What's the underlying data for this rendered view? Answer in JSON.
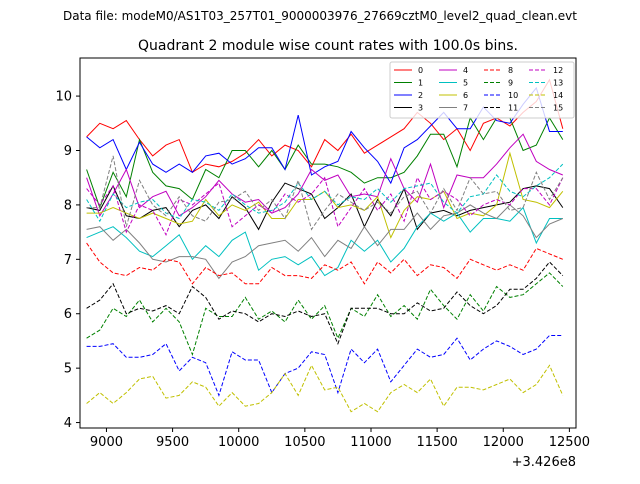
{
  "chart_data": {
    "type": "line",
    "suptitle": "Data file: modeM0/AS1T03_257T01_9000003976_27669cztM0_level2_quad_clean.evt",
    "title": "Quadrant 2 module wise count rates with 100.0s bins.",
    "xlabel": "",
    "ylabel": "",
    "offset_text": "+3.426e8",
    "xlim": [
      8800,
      12550
    ],
    "ylim": [
      3.9,
      10.7
    ],
    "xticks": [
      9000,
      9500,
      10000,
      10500,
      11000,
      11500,
      12000,
      12500
    ],
    "yticks": [
      4,
      5,
      6,
      7,
      8,
      9,
      10
    ],
    "grid": false,
    "legend": {
      "position": "top-right",
      "columns": 4
    },
    "x": [
      8850,
      8950,
      9050,
      9150,
      9250,
      9350,
      9450,
      9550,
      9650,
      9750,
      9850,
      9950,
      10050,
      10150,
      10250,
      10350,
      10450,
      10550,
      10650,
      10750,
      10850,
      10950,
      11050,
      11150,
      11250,
      11350,
      11450,
      11550,
      11650,
      11750,
      11850,
      11950,
      12050,
      12150,
      12250,
      12350,
      12450
    ],
    "series": [
      {
        "name": "0",
        "color": "#ff0000",
        "dash": "solid",
        "values": [
          9.25,
          9.5,
          9.4,
          9.55,
          9.2,
          8.9,
          9.1,
          9.2,
          8.6,
          8.75,
          8.7,
          8.8,
          8.95,
          9.2,
          8.9,
          9.1,
          9.0,
          8.7,
          9.2,
          9.0,
          9.3,
          8.95,
          9.1,
          9.25,
          9.4,
          9.7,
          9.5,
          9.2,
          9.4,
          9.0,
          9.5,
          9.6,
          9.45,
          9.7,
          9.9,
          10.3,
          9.4
        ]
      },
      {
        "name": "1",
        "color": "#008000",
        "dash": "solid",
        "values": [
          8.65,
          7.95,
          8.6,
          8.15,
          9.2,
          8.6,
          8.35,
          8.3,
          8.1,
          8.65,
          8.5,
          9.0,
          9.0,
          8.7,
          9.0,
          8.65,
          9.1,
          8.75,
          8.75,
          8.7,
          8.6,
          8.4,
          8.5,
          8.5,
          8.6,
          8.9,
          9.3,
          9.3,
          8.7,
          9.6,
          9.2,
          9.6,
          9.6,
          9.0,
          9.1,
          9.6,
          9.2
        ]
      },
      {
        "name": "2",
        "color": "#0000ff",
        "dash": "solid",
        "values": [
          9.25,
          9.05,
          9.2,
          8.65,
          9.15,
          8.75,
          8.6,
          8.75,
          8.6,
          8.9,
          8.95,
          8.75,
          8.85,
          9.05,
          9.05,
          8.65,
          9.65,
          8.55,
          8.7,
          8.8,
          9.35,
          9.05,
          8.8,
          8.4,
          9.05,
          9.2,
          9.45,
          9.7,
          9.4,
          9.4,
          9.8,
          9.55,
          9.5,
          9.85,
          10.15,
          9.35,
          9.35
        ]
      },
      {
        "name": "3",
        "color": "#000000",
        "dash": "solid",
        "values": [
          7.95,
          7.9,
          8.35,
          7.8,
          7.75,
          7.9,
          7.95,
          7.6,
          7.9,
          8.0,
          7.75,
          8.15,
          7.95,
          7.55,
          8.05,
          8.4,
          8.3,
          8.2,
          7.75,
          7.95,
          8.2,
          7.6,
          8.1,
          7.8,
          8.3,
          7.55,
          7.85,
          7.9,
          7.8,
          7.9,
          7.95,
          8.0,
          8.05,
          8.3,
          8.35,
          8.3,
          7.95
        ]
      },
      {
        "name": "4",
        "color": "#c000c0",
        "dash": "solid",
        "values": [
          8.5,
          7.8,
          8.2,
          8.65,
          7.95,
          8.15,
          8.25,
          7.8,
          7.95,
          8.15,
          8.45,
          8.2,
          8.05,
          8.1,
          7.85,
          7.95,
          8.2,
          8.65,
          8.45,
          8.55,
          8.15,
          8.2,
          8.15,
          8.85,
          8.3,
          8.05,
          8.75,
          7.95,
          8.55,
          8.5,
          8.5,
          8.75,
          9.05,
          9.3,
          8.8,
          8.65,
          8.55
        ]
      },
      {
        "name": "5",
        "color": "#00c0c0",
        "dash": "solid",
        "values": [
          7.4,
          7.5,
          7.6,
          7.4,
          7.15,
          7.05,
          7.25,
          7.45,
          7.0,
          7.25,
          7.05,
          7.35,
          7.5,
          6.8,
          7.0,
          7.05,
          6.9,
          7.05,
          6.7,
          6.85,
          7.35,
          7.15,
          7.35,
          6.95,
          7.2,
          7.6,
          7.85,
          7.7,
          7.85,
          7.5,
          7.75,
          7.75,
          7.7,
          7.95,
          7.3,
          7.75,
          7.75
        ]
      },
      {
        "name": "6",
        "color": "#c0c000",
        "dash": "solid",
        "values": [
          7.85,
          7.85,
          7.95,
          7.85,
          7.75,
          7.85,
          7.75,
          7.65,
          7.7,
          8.1,
          7.8,
          8.0,
          7.9,
          8.05,
          7.75,
          7.75,
          8.1,
          8.1,
          8.25,
          7.95,
          8.0,
          7.9,
          8.15,
          7.4,
          7.9,
          8.15,
          8.1,
          8.25,
          7.75,
          7.85,
          7.8,
          8.0,
          8.95,
          8.1,
          8.05,
          7.95,
          8.25
        ]
      },
      {
        "name": "7",
        "color": "#808080",
        "dash": "solid",
        "values": [
          7.55,
          7.6,
          7.35,
          7.55,
          7.3,
          7.0,
          6.95,
          7.05,
          7.05,
          7.0,
          6.65,
          6.95,
          7.05,
          7.25,
          7.3,
          7.35,
          7.15,
          7.4,
          7.05,
          7.35,
          7.2,
          7.6,
          7.25,
          7.55,
          7.55,
          7.85,
          7.55,
          7.8,
          7.85,
          8.0,
          7.85,
          7.75,
          8.0,
          7.8,
          7.4,
          7.65,
          7.75
        ]
      },
      {
        "name": "8",
        "color": "#ff0000",
        "dash": "dashed",
        "values": [
          7.3,
          6.95,
          6.75,
          6.7,
          6.85,
          6.8,
          7.0,
          6.95,
          6.55,
          6.85,
          6.7,
          6.75,
          6.55,
          6.55,
          6.85,
          6.7,
          6.7,
          6.65,
          6.9,
          6.8,
          6.95,
          6.55,
          6.95,
          6.75,
          7.0,
          6.7,
          6.9,
          6.85,
          6.65,
          7.0,
          6.9,
          6.8,
          6.9,
          6.8,
          7.2,
          7.1,
          7.0
        ]
      },
      {
        "name": "9",
        "color": "#008000",
        "dash": "dashed",
        "values": [
          5.55,
          5.7,
          6.1,
          5.95,
          6.25,
          5.85,
          6.1,
          5.85,
          5.25,
          6.1,
          5.95,
          5.95,
          6.3,
          5.9,
          6.05,
          5.85,
          6.25,
          5.9,
          6.15,
          5.55,
          6.1,
          5.95,
          6.35,
          5.95,
          6.15,
          5.9,
          6.45,
          6.15,
          5.9,
          6.35,
          6.05,
          6.5,
          6.3,
          6.35,
          6.55,
          6.75,
          6.5
        ]
      },
      {
        "name": "10",
        "color": "#0000ff",
        "dash": "dashed",
        "values": [
          5.4,
          5.4,
          5.45,
          5.2,
          5.2,
          5.25,
          5.45,
          4.95,
          5.2,
          5.1,
          4.5,
          5.3,
          5.15,
          5.15,
          4.55,
          4.9,
          5.0,
          5.3,
          5.25,
          4.55,
          5.35,
          5.1,
          5.35,
          4.75,
          5.05,
          5.35,
          5.2,
          5.25,
          5.55,
          5.15,
          5.35,
          5.5,
          5.4,
          5.25,
          5.35,
          5.6,
          5.6
        ]
      },
      {
        "name": "11",
        "color": "#000000",
        "dash": "dashed",
        "values": [
          6.1,
          6.25,
          6.55,
          6.0,
          6.1,
          6.05,
          6.15,
          6.0,
          6.5,
          6.3,
          5.9,
          6.05,
          6.0,
          5.85,
          6.0,
          5.95,
          6.05,
          5.95,
          6.0,
          5.45,
          6.1,
          6.1,
          6.1,
          6.0,
          6.0,
          6.2,
          6.05,
          6.1,
          6.4,
          6.15,
          6.0,
          6.15,
          6.45,
          6.45,
          6.65,
          6.95,
          6.7
        ]
      },
      {
        "name": "12",
        "color": "#c000c0",
        "dash": "dashed",
        "values": [
          8.3,
          8.0,
          8.35,
          7.5,
          8.0,
          7.9,
          7.45,
          8.1,
          8.0,
          8.2,
          8.4,
          7.6,
          7.8,
          8.0,
          7.85,
          8.2,
          8.05,
          8.2,
          8.5,
          7.6,
          7.95,
          8.3,
          7.9,
          8.2,
          7.7,
          8.5,
          8.1,
          8.25,
          8.1,
          7.8,
          8.0,
          8.1,
          8.0,
          8.3,
          8.3,
          8.0,
          8.5
        ]
      },
      {
        "name": "13",
        "color": "#00c0c0",
        "dash": "dashed",
        "values": [
          8.1,
          7.7,
          8.2,
          7.95,
          8.05,
          8.1,
          7.85,
          7.75,
          8.1,
          8.05,
          7.9,
          8.2,
          8.0,
          7.85,
          7.9,
          8.05,
          8.4,
          8.1,
          8.25,
          8.0,
          8.15,
          8.1,
          8.3,
          8.05,
          8.3,
          8.35,
          8.4,
          8.05,
          7.85,
          8.15,
          8.2,
          8.55,
          8.25,
          8.15,
          8.35,
          8.5,
          8.75
        ]
      },
      {
        "name": "14",
        "color": "#c0c000",
        "dash": "dashed",
        "values": [
          4.35,
          4.55,
          4.35,
          4.55,
          4.8,
          4.85,
          4.45,
          4.5,
          4.75,
          4.65,
          4.3,
          4.55,
          4.3,
          4.35,
          4.55,
          4.9,
          4.5,
          5.05,
          4.6,
          4.65,
          4.2,
          4.35,
          4.2,
          4.55,
          4.7,
          4.55,
          4.8,
          4.3,
          4.65,
          4.65,
          4.6,
          4.7,
          4.8,
          4.55,
          4.7,
          5.05,
          4.5
        ]
      },
      {
        "name": "15",
        "color": "#808080",
        "dash": "dashed",
        "values": [
          7.95,
          7.95,
          8.9,
          7.6,
          8.45,
          8.0,
          7.8,
          8.15,
          7.8,
          7.7,
          8.05,
          8.1,
          8.25,
          7.9,
          8.1,
          7.75,
          8.45,
          7.55,
          7.9,
          8.2,
          8.05,
          7.9,
          8.05,
          7.85,
          8.15,
          8.25,
          7.85,
          8.3,
          7.9,
          8.5,
          8.2,
          8.25,
          7.9,
          7.95,
          8.6,
          8.1,
          8.5
        ]
      }
    ]
  }
}
